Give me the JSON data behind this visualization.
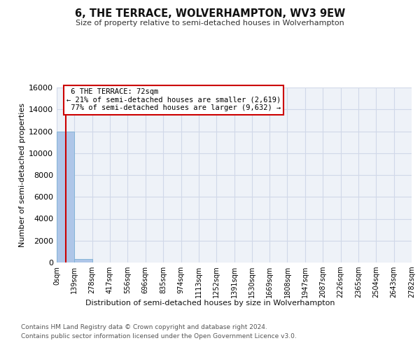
{
  "title": "6, THE TERRACE, WOLVERHAMPTON, WV3 9EW",
  "subtitle": "Size of property relative to semi-detached houses in Wolverhampton",
  "xlabel": "Distribution of semi-detached houses by size in Wolverhampton",
  "ylabel": "Number of semi-detached properties",
  "footer_line1": "Contains HM Land Registry data © Crown copyright and database right 2024.",
  "footer_line2": "Contains public sector information licensed under the Open Government Licence v3.0.",
  "property_size": 72,
  "property_label": "6 THE TERRACE: 72sqm",
  "pct_smaller": 21,
  "pct_larger": 77,
  "count_smaller": 2619,
  "count_larger": 9632,
  "bin_edges": [
    0,
    139,
    278,
    417,
    556,
    696,
    835,
    974,
    1113,
    1252,
    1391,
    1530,
    1669,
    1808,
    1947,
    2087,
    2226,
    2365,
    2504,
    2643,
    2782
  ],
  "bar_heights": [
    12000,
    350,
    0,
    0,
    0,
    0,
    0,
    0,
    0,
    0,
    0,
    0,
    0,
    0,
    0,
    0,
    0,
    0,
    0,
    0
  ],
  "bar_color": "#aec6e8",
  "bar_edgecolor": "#7bafd4",
  "grid_color": "#d0d8e8",
  "background_color": "#eef2f8",
  "vline_color": "#cc0000",
  "box_edgecolor": "#cc0000",
  "box_facecolor": "#ffffff",
  "ylim": [
    0,
    16000
  ],
  "yticks": [
    0,
    2000,
    4000,
    6000,
    8000,
    10000,
    12000,
    14000,
    16000
  ],
  "tick_labels": [
    "0sqm",
    "139sqm",
    "278sqm",
    "417sqm",
    "556sqm",
    "696sqm",
    "835sqm",
    "974sqm",
    "1113sqm",
    "1252sqm",
    "1391sqm",
    "1530sqm",
    "1669sqm",
    "1808sqm",
    "1947sqm",
    "2087sqm",
    "2226sqm",
    "2365sqm",
    "2504sqm",
    "2643sqm",
    "2782sqm"
  ]
}
